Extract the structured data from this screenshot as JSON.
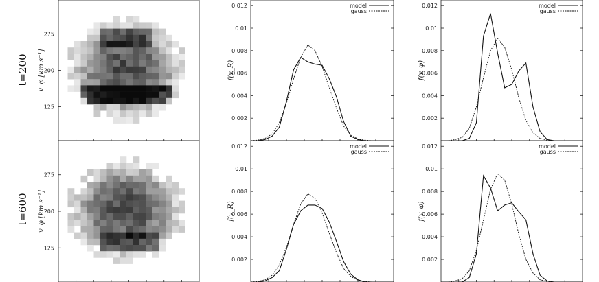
{
  "row_labels": [
    "t=200",
    "t=600"
  ],
  "density_ylabel": "v_φ  [km s⁻¹]",
  "legend": {
    "model": "model",
    "gauss": "gauss"
  },
  "chart_data": [
    {
      "type": "heatmap",
      "row": 0,
      "col": 0,
      "ylabel": "v_φ [km s⁻¹]",
      "yticks": [
        "275",
        "200",
        "125"
      ],
      "yticks_values": [
        275,
        200,
        125
      ],
      "ylim": [
        55,
        345
      ],
      "description_bands": "dark band near v_φ≈140, secondary dark clump near v_φ≈260"
    },
    {
      "type": "line",
      "row": 0,
      "col": 1,
      "ylabel": "f(v_R)",
      "yticks": [
        "0.002",
        "0.004",
        "0.006",
        "0.008",
        "0.01",
        "0.012"
      ],
      "ylim": [
        0,
        0.0125
      ],
      "xlim": [
        0,
        20
      ],
      "x": [
        0,
        1,
        2,
        3,
        4,
        5,
        6,
        7,
        8,
        9,
        10,
        11,
        12,
        13,
        14,
        15,
        16,
        17,
        18,
        19,
        20
      ],
      "series": [
        {
          "name": "model",
          "style": "solid",
          "values": [
            0,
            0,
            0.0001,
            0.0004,
            0.0012,
            0.0035,
            0.0063,
            0.0074,
            0.007,
            0.0068,
            0.0067,
            0.0055,
            0.0039,
            0.0017,
            0.0004,
            0.0001,
            0,
            0,
            0,
            0,
            0
          ]
        },
        {
          "name": "gauss",
          "style": "dotted",
          "values": [
            0,
            5e-05,
            0.0002,
            0.0006,
            0.0016,
            0.0033,
            0.0055,
            0.0074,
            0.0085,
            0.008,
            0.0066,
            0.0047,
            0.0029,
            0.0013,
            0.0005,
            0.00015,
            4e-05,
            0,
            0,
            0,
            0
          ]
        }
      ]
    },
    {
      "type": "line",
      "row": 0,
      "col": 2,
      "ylabel": "f(v_φ)",
      "yticks": [
        "0.002",
        "0.004",
        "0.006",
        "0.008",
        "0.01",
        "0.012"
      ],
      "ylim": [
        0,
        0.0125
      ],
      "xlim": [
        0,
        20
      ],
      "x": [
        0,
        1,
        2,
        3,
        4,
        5,
        6,
        7,
        8,
        9,
        10,
        11,
        12,
        13,
        14,
        15,
        16,
        17,
        18,
        19,
        20
      ],
      "series": [
        {
          "name": "model",
          "style": "solid",
          "values": [
            0,
            0,
            0,
            0,
            0.0002,
            0.0016,
            0.0093,
            0.0113,
            0.0078,
            0.0047,
            0.005,
            0.0062,
            0.0069,
            0.003,
            0.0008,
            0.0001,
            0,
            0,
            0,
            0,
            0
          ]
        },
        {
          "name": "gauss",
          "style": "dotted",
          "values": [
            0,
            0,
            0.0001,
            0.0003,
            0.0011,
            0.003,
            0.0056,
            0.008,
            0.0091,
            0.0083,
            0.0063,
            0.0038,
            0.0018,
            0.0007,
            0.0002,
            5e-05,
            0,
            0,
            0,
            0,
            0
          ]
        }
      ]
    },
    {
      "type": "heatmap",
      "row": 1,
      "col": 0,
      "ylabel": "v_φ [km s⁻¹]",
      "yticks": [
        "275",
        "200",
        "125"
      ],
      "yticks_values": [
        275,
        200,
        125
      ],
      "ylim": [
        55,
        345
      ],
      "description_bands": "broad distribution, dark patch near v_φ≈145"
    },
    {
      "type": "line",
      "row": 1,
      "col": 1,
      "ylabel": "f(v_R)",
      "yticks": [
        "0.002",
        "0.004",
        "0.006",
        "0.008",
        "0.01",
        "0.012"
      ],
      "ylim": [
        0,
        0.0125
      ],
      "xlim": [
        0,
        20
      ],
      "x": [
        0,
        1,
        2,
        3,
        4,
        5,
        6,
        7,
        8,
        9,
        10,
        11,
        12,
        13,
        14,
        15,
        16,
        17,
        18,
        19,
        20
      ],
      "series": [
        {
          "name": "model",
          "style": "solid",
          "values": [
            0,
            0,
            0.0001,
            0.0004,
            0.001,
            0.0029,
            0.0051,
            0.0063,
            0.0068,
            0.0068,
            0.0065,
            0.0053,
            0.0036,
            0.0018,
            0.0007,
            0.0002,
            0,
            0,
            0,
            0,
            0
          ]
        },
        {
          "name": "gauss",
          "style": "dotted",
          "values": [
            0,
            5e-05,
            0.0002,
            0.0006,
            0.0015,
            0.0031,
            0.0051,
            0.0069,
            0.0078,
            0.0074,
            0.0061,
            0.0043,
            0.0026,
            0.0012,
            0.0005,
            0.00015,
            4e-05,
            0,
            0,
            0,
            0
          ]
        }
      ]
    },
    {
      "type": "line",
      "row": 1,
      "col": 2,
      "ylabel": "f(v_φ)",
      "yticks": [
        "0.002",
        "0.004",
        "0.006",
        "0.008",
        "0.01",
        "0.012"
      ],
      "ylim": [
        0,
        0.0125
      ],
      "xlim": [
        0,
        20
      ],
      "x": [
        0,
        1,
        2,
        3,
        4,
        5,
        6,
        7,
        8,
        9,
        10,
        11,
        12,
        13,
        14,
        15,
        16,
        17,
        18,
        19,
        20
      ],
      "series": [
        {
          "name": "model",
          "style": "solid",
          "values": [
            0,
            0,
            0,
            0,
            0.0004,
            0.0025,
            0.0094,
            0.0083,
            0.0063,
            0.0068,
            0.007,
            0.0062,
            0.0055,
            0.0025,
            0.0006,
            0.0001,
            0,
            0,
            0,
            0,
            0
          ]
        },
        {
          "name": "gauss",
          "style": "dotted",
          "values": [
            0,
            0,
            0.0001,
            0.0003,
            0.001,
            0.0028,
            0.0055,
            0.0082,
            0.0096,
            0.009,
            0.0069,
            0.0042,
            0.002,
            0.0008,
            0.0002,
            5e-05,
            0,
            0,
            0,
            0,
            0
          ]
        }
      ]
    }
  ]
}
